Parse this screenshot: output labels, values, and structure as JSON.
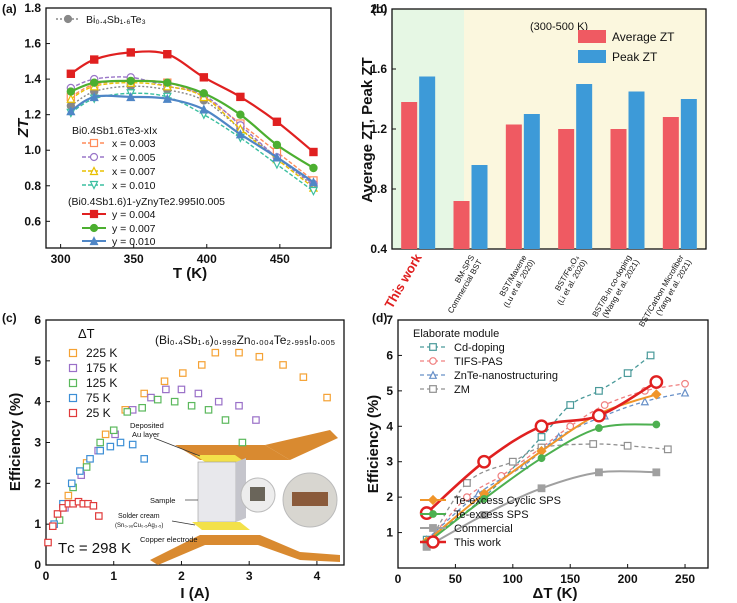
{
  "chart_data": [
    {
      "panel": "(a)",
      "type": "line",
      "xlabel": "T (K)",
      "ylabel": "ZT",
      "xlim": [
        290,
        485
      ],
      "ylim": [
        0.45,
        1.8
      ],
      "xticks": [
        300,
        350,
        400,
        450
      ],
      "yticks": [
        0.6,
        0.8,
        1.0,
        1.2,
        1.4,
        1.6,
        1.8
      ],
      "x": [
        307,
        323,
        348,
        373,
        398,
        423,
        448,
        473
      ],
      "legend_group1_title": "Bi0.4Sb1.6Te3-xIx",
      "legend_group2_title": "(Bi0.4Sb1.6)1-yZnyTe2.995I0.005",
      "series": [
        {
          "name": "Bi0.4Sb1.6Te3",
          "label": "Bi₀.₄Sb₁.₆Te₃",
          "color": "#888888",
          "marker": "circle-filled",
          "dash": "2,2",
          "values": [
            1.25,
            1.33,
            1.36,
            1.34,
            1.28,
            1.12,
            0.96,
            0.8
          ]
        },
        {
          "name": "x = 0.003",
          "label": "x = 0.003",
          "color": "#ff8c5a",
          "marker": "square-open",
          "dash": "4,2",
          "values": [
            1.3,
            1.37,
            1.39,
            1.38,
            1.3,
            1.15,
            0.99,
            0.83
          ]
        },
        {
          "name": "x = 0.005",
          "label": "x = 0.005",
          "color": "#9a76c8",
          "marker": "circle-open",
          "dash": "4,2",
          "values": [
            1.35,
            1.4,
            1.41,
            1.36,
            1.31,
            1.14,
            0.96,
            0.81
          ]
        },
        {
          "name": "x = 0.007",
          "label": "x = 0.007",
          "color": "#e8c000",
          "marker": "triangle-open",
          "dash": "4,2",
          "values": [
            1.29,
            1.36,
            1.38,
            1.36,
            1.3,
            1.12,
            0.95,
            0.79
          ]
        },
        {
          "name": "x = 0.010",
          "label": "x = 0.010",
          "color": "#3bbfa0",
          "marker": "triangle-down-open",
          "dash": "4,2",
          "values": [
            1.21,
            1.29,
            1.32,
            1.3,
            1.2,
            1.07,
            0.92,
            0.77
          ]
        },
        {
          "name": "y = 0.004",
          "label": "y = 0.004",
          "color": "#e02020",
          "marker": "square-filled",
          "dash": "",
          "values": [
            1.43,
            1.51,
            1.55,
            1.54,
            1.41,
            1.3,
            1.16,
            0.99
          ]
        },
        {
          "name": "y = 0.007",
          "label": "y = 0.007",
          "color": "#4caf30",
          "marker": "circle-filled",
          "dash": "",
          "values": [
            1.33,
            1.38,
            1.39,
            1.38,
            1.32,
            1.2,
            1.03,
            0.9
          ]
        },
        {
          "name": "y = 0.010",
          "label": "y = 0.010",
          "color": "#4f86c6",
          "marker": "triangle-filled",
          "dash": "",
          "values": [
            1.22,
            1.3,
            1.3,
            1.29,
            1.23,
            1.09,
            0.96,
            0.82
          ]
        }
      ]
    },
    {
      "panel": "(b)",
      "type": "bar",
      "ylabel": "Average ZT, Peak ZT",
      "ylim": [
        0.4,
        2.0
      ],
      "yticks": [
        0.4,
        0.8,
        1.2,
        1.6,
        2.0
      ],
      "annotation": "(300-500 K)",
      "categories": [
        "This work",
        "BM-SPS Commercial BST",
        "BST/Maxene (Lu et al. 2020)",
        "BST/Fe3O4 (Li et al. 2020)",
        "BST/B-In co-doping (Wang et al. 2021)",
        "BST/Carbon Microfiber (Yang et al. 2021)"
      ],
      "category_lines": [
        [
          "This work"
        ],
        [
          "BM-SPS",
          "Commercial BST"
        ],
        [
          "BST/Maxene",
          "(Lu et al. 2020)"
        ],
        [
          "BST/Fe₃O₄",
          "(Li et al. 2020)"
        ],
        [
          "BST/B-In co-doping",
          "(Wang et al. 2021)"
        ],
        [
          "BST/Carbon Microfiber",
          "(Yang et al. 2021)"
        ]
      ],
      "series": [
        {
          "name": "Average ZT",
          "color": "#ef5a62",
          "values": [
            1.38,
            0.72,
            1.23,
            1.2,
            1.2,
            1.28
          ]
        },
        {
          "name": "Peak ZT",
          "color": "#3d9ad8",
          "values": [
            1.55,
            0.96,
            1.3,
            1.5,
            1.45,
            1.4
          ]
        }
      ]
    },
    {
      "panel": "(c)",
      "type": "scatter",
      "title": "(Bi₀.₄Sb₁.₆)₀.₉₉₈Zn₀.₀₀₄Te₂.₉₉₅I₀.₀₀₅",
      "xlabel": "I (A)",
      "ylabel": "Efficiency (%)",
      "xlim": [
        0,
        4.4
      ],
      "ylim": [
        0,
        6
      ],
      "xticks": [
        0,
        1,
        2,
        3,
        4
      ],
      "yticks": [
        0,
        1,
        2,
        3,
        4,
        5,
        6
      ],
      "legend_title": "ΔT",
      "tc_label": "Tᴄ = 298 K",
      "inset_labels": [
        "Deposited",
        "Au layer",
        "Sample",
        "Solder cream",
        "(Sn₀.₉₆Cu₀.₅Ag₃.₅)",
        "Copper electrode"
      ],
      "series": [
        {
          "name": "225 K",
          "color": "#f5a234",
          "x": [
            0.33,
            0.6,
            0.88,
            1.17,
            1.45,
            1.75,
            2.02,
            2.3,
            2.5,
            2.85,
            3.15,
            3.5,
            3.8,
            4.15
          ],
          "values": [
            1.7,
            2.5,
            3.2,
            3.8,
            4.2,
            4.5,
            4.7,
            4.9,
            5.2,
            5.2,
            5.1,
            4.9,
            4.6,
            4.1
          ]
        },
        {
          "name": "175 K",
          "color": "#9a70c8",
          "x": [
            0.28,
            0.52,
            0.77,
            1.02,
            1.28,
            1.55,
            1.77,
            2.0,
            2.25,
            2.55,
            2.85,
            3.1
          ],
          "values": [
            1.4,
            2.2,
            2.8,
            3.2,
            3.8,
            4.1,
            4.3,
            4.3,
            4.2,
            4.0,
            3.9,
            3.55
          ]
        },
        {
          "name": "125 K",
          "color": "#5bb85c",
          "x": [
            0.2,
            0.4,
            0.6,
            0.8,
            1.0,
            1.2,
            1.42,
            1.65,
            1.9,
            2.15,
            2.4,
            2.65,
            2.9
          ],
          "values": [
            1.1,
            1.9,
            2.4,
            3.0,
            3.3,
            3.75,
            3.85,
            4.05,
            4.0,
            3.9,
            3.8,
            3.55,
            3.0
          ]
        },
        {
          "name": "75 K",
          "color": "#3d8fd6",
          "x": [
            0.12,
            0.25,
            0.38,
            0.5,
            0.65,
            0.8,
            0.95,
            1.1,
            1.28,
            1.45
          ],
          "values": [
            1.0,
            1.5,
            2.0,
            2.3,
            2.6,
            2.8,
            2.9,
            3.0,
            2.95,
            2.6
          ]
        },
        {
          "name": "25 K",
          "color": "#e03a3a",
          "x": [
            0.03,
            0.1,
            0.17,
            0.25,
            0.33,
            0.4,
            0.48,
            0.55,
            0.62,
            0.7,
            0.78
          ],
          "values": [
            0.55,
            0.95,
            1.25,
            1.4,
            1.5,
            1.5,
            1.55,
            1.5,
            1.5,
            1.45,
            1.2
          ]
        }
      ]
    },
    {
      "panel": "(d)",
      "type": "line",
      "xlabel": "ΔT (K)",
      "ylabel": "Efficiency (%)",
      "xlim": [
        0,
        270
      ],
      "ylim": [
        0,
        7
      ],
      "xticks": [
        0,
        50,
        100,
        150,
        200,
        250
      ],
      "yticks": [
        1,
        2,
        3,
        4,
        5,
        6,
        7
      ],
      "legend_group1_title": "Elaborate module",
      "series": [
        {
          "name": "Cd-doping",
          "color": "#4a9a9a",
          "marker": "square-open",
          "dash": "4,3",
          "x": [
            25,
            75,
            125,
            150,
            175,
            200,
            220
          ],
          "values": [
            0.8,
            2.0,
            3.7,
            4.6,
            5.0,
            5.5,
            6.0
          ]
        },
        {
          "name": "TIFS-PAS",
          "color": "#f08080",
          "marker": "circle-open",
          "dash": "4,3",
          "x": [
            25,
            60,
            90,
            125,
            150,
            180,
            215,
            250
          ],
          "values": [
            0.7,
            2.0,
            2.6,
            3.4,
            4.0,
            4.6,
            5.0,
            5.2
          ]
        },
        {
          "name": "ZnTe-nanostructuring",
          "color": "#6890c8",
          "marker": "triangle-open",
          "dash": "4,3",
          "x": [
            25,
            70,
            110,
            140,
            180,
            215,
            250
          ],
          "values": [
            0.8,
            2.1,
            2.9,
            3.7,
            4.3,
            4.7,
            4.95
          ]
        },
        {
          "name": "ZM",
          "color": "#909090",
          "marker": "square-open",
          "dash": "4,3",
          "x": [
            25,
            60,
            100,
            125,
            170,
            200,
            235
          ],
          "values": [
            0.6,
            2.4,
            3.0,
            3.4,
            3.5,
            3.45,
            3.35
          ]
        },
        {
          "name": "Te-excess Cyclic SPS",
          "color": "#f0952a",
          "marker": "diamond-filled",
          "dash": "",
          "x": [
            25,
            75,
            125,
            175,
            225
          ],
          "values": [
            0.75,
            2.1,
            3.3,
            4.35,
            4.9
          ]
        },
        {
          "name": "Te-excess SPS",
          "color": "#4db050",
          "marker": "circle-filled",
          "dash": "",
          "x": [
            25,
            75,
            125,
            175,
            225
          ],
          "values": [
            0.7,
            1.95,
            3.1,
            3.95,
            4.05
          ]
        },
        {
          "name": "Commercial",
          "color": "#a0a0a0",
          "marker": "square-filled",
          "dash": "",
          "x": [
            25,
            75,
            125,
            175,
            225
          ],
          "values": [
            0.6,
            1.5,
            2.25,
            2.7,
            2.7
          ]
        },
        {
          "name": "This work",
          "color": "#e02020",
          "marker": "circle-big-open",
          "dash": "",
          "x": [
            25,
            75,
            125,
            175,
            225
          ],
          "values": [
            1.55,
            3.0,
            4.0,
            4.3,
            5.25
          ]
        }
      ]
    }
  ]
}
